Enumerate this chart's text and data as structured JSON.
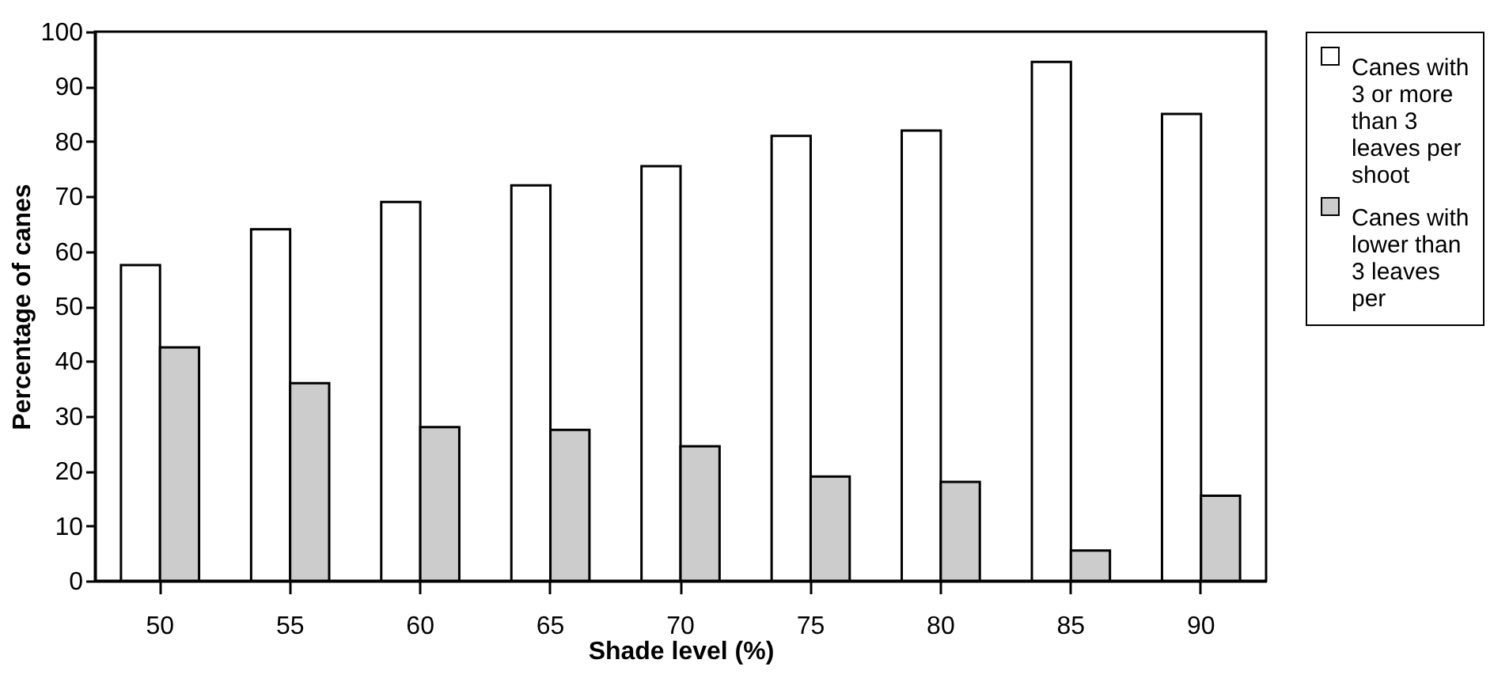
{
  "chart_data": {
    "type": "bar",
    "xlabel": "Shade level (%)",
    "ylabel": "Percentage of canes",
    "categories": [
      "50",
      "55",
      "60",
      "65",
      "70",
      "75",
      "80",
      "85",
      "90"
    ],
    "series": [
      {
        "name": "Canes with 3 or more than 3 leaves per shoot",
        "color": "#ffffff",
        "values": [
          57.5,
          64,
          69,
          72,
          75.5,
          81,
          82,
          94.5,
          85
        ]
      },
      {
        "name": "Canes with lower than 3 leaves per",
        "color": "#cccccc",
        "values": [
          42.5,
          36,
          28,
          27.5,
          24.5,
          19,
          18,
          5.5,
          15.5
        ]
      }
    ],
    "ylim": [
      0,
      100
    ],
    "yticks": [
      0,
      10,
      20,
      30,
      40,
      50,
      60,
      70,
      80,
      90,
      100
    ],
    "grid": false,
    "legend": "right"
  }
}
